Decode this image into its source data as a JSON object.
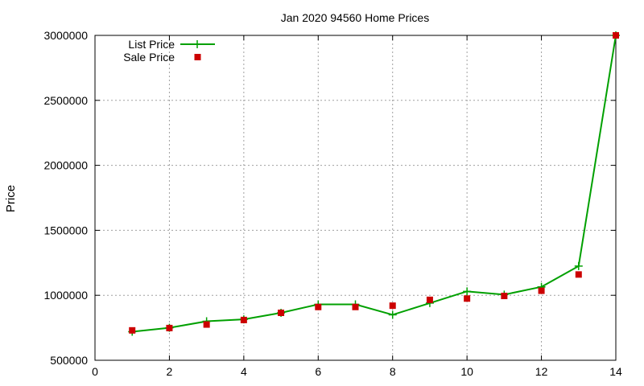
{
  "chart_data": {
    "type": "line",
    "title": "Jan 2020 94560 Home Prices",
    "xlabel": "",
    "ylabel": "Price",
    "xlim": [
      0,
      14
    ],
    "ylim": [
      500000,
      3000000
    ],
    "xticks": [
      0,
      2,
      4,
      6,
      8,
      10,
      12,
      14
    ],
    "yticks": [
      500000,
      1000000,
      1500000,
      2000000,
      2500000,
      3000000
    ],
    "x_tick_labels": [
      "0",
      "2",
      "4",
      "6",
      "8",
      "10",
      "12",
      "14"
    ],
    "y_tick_labels": [
      "500000",
      "1000000",
      "1500000",
      "2000000",
      "2500000",
      "3000000"
    ],
    "grid": true,
    "legend_position": "top-left",
    "series": [
      {
        "name": "List Price",
        "style": "line-with-plus-markers",
        "color": "#00a000",
        "x": [
          1,
          2,
          3,
          4,
          5,
          6,
          7,
          8,
          9,
          10,
          11,
          12,
          13,
          14
        ],
        "y": [
          720000,
          750000,
          800000,
          815000,
          865000,
          930000,
          930000,
          850000,
          940000,
          1030000,
          1005000,
          1065000,
          1225000,
          3000000
        ]
      },
      {
        "name": "Sale Price",
        "style": "square-markers",
        "color": "#cc0000",
        "x": [
          1,
          2,
          3,
          4,
          5,
          6,
          7,
          8,
          9,
          10,
          11,
          12,
          13,
          14
        ],
        "y": [
          730000,
          748000,
          775000,
          810000,
          865000,
          910000,
          910000,
          920000,
          965000,
          975000,
          995000,
          1035000,
          1160000,
          3000000
        ]
      }
    ]
  }
}
